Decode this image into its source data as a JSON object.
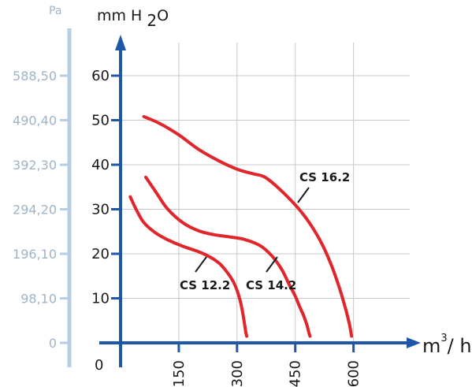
{
  "chart_data": {
    "type": "line",
    "title": "",
    "ylabel": "mm H 2O",
    "ylabel_main": "mm H ",
    "ylabel_sub": "2",
    "ylabel_tail": "O",
    "secondary_ylabel": "Pa",
    "xlabel_main": "m",
    "xlabel_sup": "3",
    "xlabel_tail": "/ h",
    "xlim": [
      0,
      650
    ],
    "ylim": [
      0,
      65
    ],
    "grid": true,
    "y_ticks": [
      10,
      20,
      30,
      40,
      50,
      60
    ],
    "y_tick_labels": [
      "10",
      "20",
      "30",
      "40",
      "50",
      "60"
    ],
    "x_ticks": [
      150,
      300,
      450,
      600
    ],
    "x_tick_labels": [
      "150",
      "300",
      "450",
      "600"
    ],
    "zero_label": "0",
    "pa_ticks": [
      0,
      10,
      20,
      30,
      40,
      50,
      60
    ],
    "pa_tick_labels": [
      "0",
      "98,10",
      "196,10",
      "294,20",
      "392,30",
      "490,40",
      "588,50"
    ],
    "colors": {
      "series": "#e0262b",
      "axis": "#1f57a8",
      "pa_axis": "#b8cde3",
      "grid": "#c8c8c8"
    },
    "series": [
      {
        "name": "CS 12.2",
        "x": [
          25,
          40,
          60,
          90,
          120,
          160,
          200,
          230,
          255,
          275,
          290,
          300,
          308,
          313,
          317,
          320,
          323,
          325
        ],
        "y": [
          32.8,
          30.0,
          27.0,
          24.7,
          23.2,
          21.7,
          20.5,
          19.3,
          17.8,
          15.8,
          13.8,
          11.8,
          9.5,
          7.5,
          5.5,
          3.8,
          2.2,
          1.5
        ]
      },
      {
        "name": "CS 14.2",
        "x": [
          65,
          90,
          120,
          160,
          200,
          240,
          280,
          320,
          360,
          390,
          415,
          435,
          450,
          462,
          472,
          480,
          485,
          488
        ],
        "y": [
          37.2,
          34.0,
          30.2,
          27.0,
          25.2,
          24.3,
          23.8,
          23.2,
          21.8,
          19.5,
          16.5,
          13.0,
          10.5,
          8.0,
          6.0,
          4.0,
          2.3,
          1.5
        ]
      },
      {
        "name": "CS 16.2",
        "x": [
          60,
          100,
          150,
          200,
          250,
          300,
          340,
          370,
          400,
          430,
          460,
          490,
          520,
          545,
          565,
          580,
          590,
          595
        ],
        "y": [
          50.8,
          49.3,
          46.7,
          43.5,
          41.0,
          39.0,
          38.0,
          37.3,
          35.3,
          32.8,
          30.0,
          26.5,
          22.0,
          17.0,
          12.0,
          7.5,
          4.0,
          1.5
        ]
      }
    ],
    "annotations": [
      {
        "text": "CS 12.2",
        "series": "CS 12.2"
      },
      {
        "text": "CS 14.2",
        "series": "CS 14.2"
      },
      {
        "text": "CS 16.2",
        "series": "CS 16.2"
      }
    ]
  }
}
